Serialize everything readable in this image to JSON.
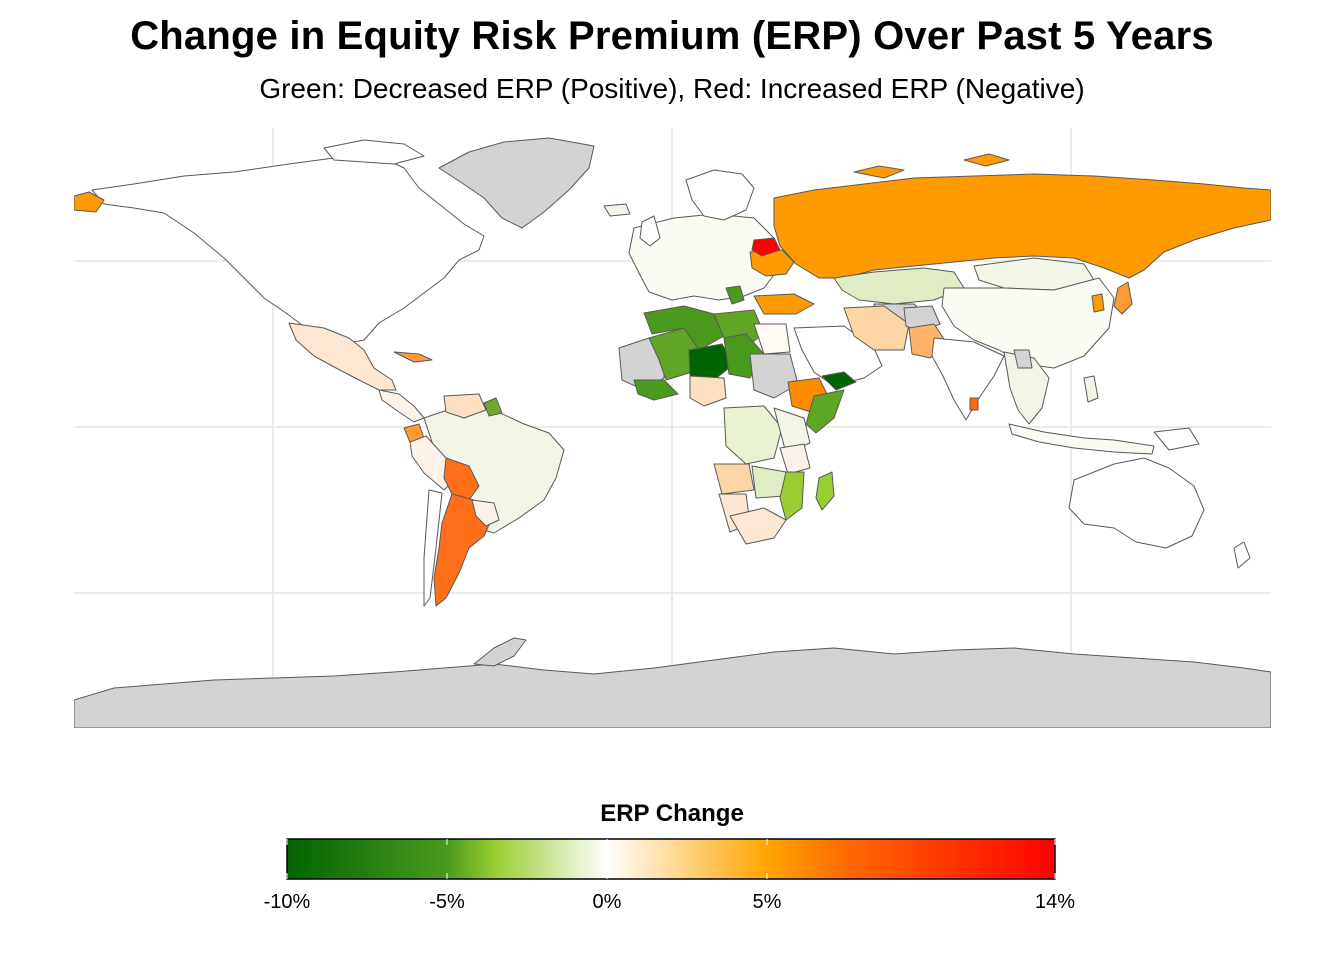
{
  "title": "Change in Equity Risk Premium (ERP) Over Past 5 Years",
  "subtitle": "Green: Decreased ERP (Positive), Red: Increased ERP (Negative)",
  "legend": {
    "title": "ERP Change",
    "min": -10,
    "max": 14,
    "ticks": [
      {
        "value": -10,
        "label": "-10%"
      },
      {
        "value": -5,
        "label": "-5%"
      },
      {
        "value": 0,
        "label": "0%"
      },
      {
        "value": 5,
        "label": "5%"
      },
      {
        "value": 14,
        "label": "14%"
      }
    ],
    "gradient_stops": [
      {
        "value": -10,
        "color": "#006400"
      },
      {
        "value": -5,
        "color": "#4a9a1e"
      },
      {
        "value": -3.5,
        "color": "#9acd32"
      },
      {
        "value": 0,
        "color": "#ffffff"
      },
      {
        "value": 5,
        "color": "#ffa500"
      },
      {
        "value": 7.5,
        "color": "#ff6a00"
      },
      {
        "value": 14,
        "color": "#ff0000"
      }
    ]
  },
  "colors": {
    "no_data": "#d3d3d3",
    "border": "#595959",
    "grid": "#ebebeb",
    "background": "#ffffff"
  },
  "regions": [
    {
      "name": "Greenland",
      "erp_change": null
    },
    {
      "name": "Antarctica",
      "erp_change": null
    },
    {
      "name": "Russia",
      "erp_change": 6.5
    },
    {
      "name": "Belarus",
      "erp_change": 14
    },
    {
      "name": "Ukraine",
      "erp_change": 5.5
    },
    {
      "name": "Argentina",
      "erp_change": 7.5
    },
    {
      "name": "Bolivia",
      "erp_change": 7.5
    },
    {
      "name": "Nigeria",
      "erp_change": 1.5
    },
    {
      "name": "Niger",
      "erp_change": -10
    },
    {
      "name": "Yemen",
      "erp_change": -10
    },
    {
      "name": "Ethiopia",
      "erp_change": 6.5
    },
    {
      "name": "Mali",
      "erp_change": -4.5
    },
    {
      "name": "Algeria",
      "erp_change": -5
    },
    {
      "name": "Libya",
      "erp_change": -4.5
    },
    {
      "name": "Chad",
      "erp_change": -5
    },
    {
      "name": "Sudan",
      "erp_change": null
    },
    {
      "name": "Egypt",
      "erp_change": 0.3
    },
    {
      "name": "Iran",
      "erp_change": 2.5
    },
    {
      "name": "Afghanistan",
      "erp_change": null
    },
    {
      "name": "Pakistan",
      "erp_change": 3.5
    },
    {
      "name": "Turkey",
      "erp_change": 5.5
    },
    {
      "name": "Kazakhstan",
      "erp_change": -1.5
    },
    {
      "name": "Mongolia",
      "erp_change": -0.5
    },
    {
      "name": "China",
      "erp_change": -0.4
    },
    {
      "name": "India",
      "erp_change": 0.2
    },
    {
      "name": "Sri Lanka",
      "erp_change": 6
    },
    {
      "name": "Japan",
      "erp_change": 5.5
    },
    {
      "name": "Mexico",
      "erp_change": 1
    },
    {
      "name": "Brazil",
      "erp_change": -0.8
    },
    {
      "name": "Ecuador",
      "erp_change": 5
    },
    {
      "name": "Peru",
      "erp_change": 0.5
    },
    {
      "name": "Namibia",
      "erp_change": 2.5
    },
    {
      "name": "Angola",
      "erp_change": 2
    },
    {
      "name": "Mozambique",
      "erp_change": -3
    },
    {
      "name": "Madagascar",
      "erp_change": -3.5
    },
    {
      "name": "South Africa",
      "erp_change": 1.2
    },
    {
      "name": "DR Congo",
      "erp_change": -1
    }
  ]
}
